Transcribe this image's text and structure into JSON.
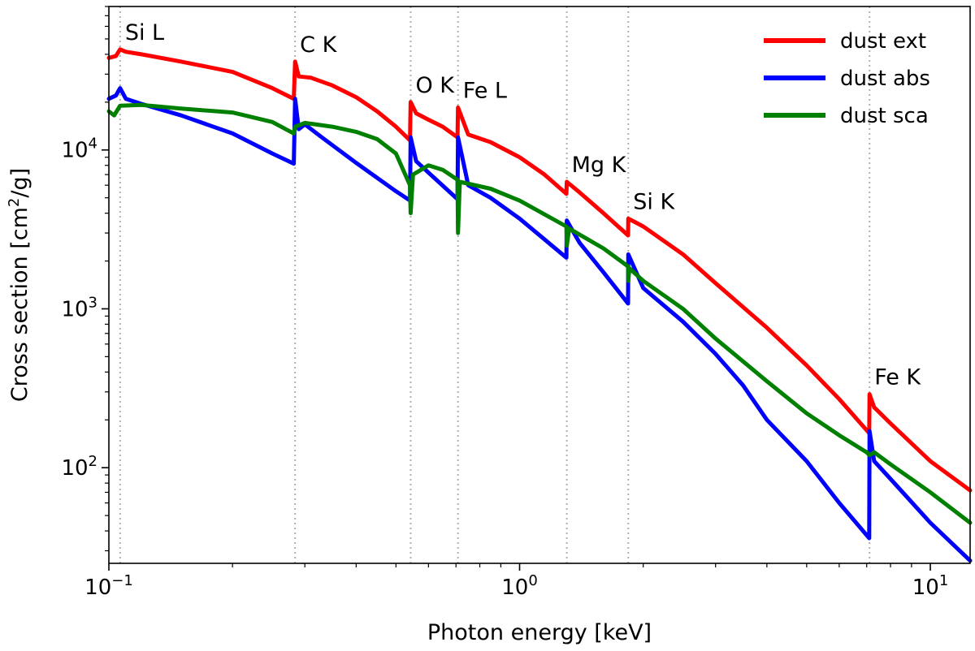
{
  "chart_data": {
    "type": "line",
    "title": "",
    "xlabel": "Photon energy [keV]",
    "ylabel": "Cross section [cm²/g]",
    "xscale": "log",
    "yscale": "log",
    "xlim": [
      0.1,
      12.5
    ],
    "ylim": [
      25,
      80000
    ],
    "grid": false,
    "legend_position": "top-right",
    "x_ticks": [
      {
        "value": 0.1,
        "base": "10",
        "exp": "−1"
      },
      {
        "value": 1,
        "base": "10",
        "exp": "0"
      },
      {
        "value": 10,
        "base": "10",
        "exp": "1"
      }
    ],
    "y_ticks": [
      {
        "value": 100,
        "base": "10",
        "exp": "2"
      },
      {
        "value": 1000,
        "base": "10",
        "exp": "3"
      },
      {
        "value": 10000,
        "base": "10",
        "exp": "4"
      }
    ],
    "edges": [
      {
        "name": "Si L",
        "energy": 0.1065
      },
      {
        "name": "C K",
        "energy": 0.284
      },
      {
        "name": "O K",
        "energy": 0.543
      },
      {
        "name": "Fe L",
        "energy": 0.708
      },
      {
        "name": "Mg K",
        "energy": 1.303
      },
      {
        "name": "Si K",
        "energy": 1.839
      },
      {
        "name": "Fe K",
        "energy": 7.112
      }
    ],
    "series": [
      {
        "name": "dust ext",
        "color": "#ff0000",
        "points": [
          [
            0.1,
            38000
          ],
          [
            0.104,
            39000
          ],
          [
            0.1065,
            43000
          ],
          [
            0.11,
            41500
          ],
          [
            0.12,
            40000
          ],
          [
            0.15,
            36000
          ],
          [
            0.2,
            31000
          ],
          [
            0.25,
            24500
          ],
          [
            0.282,
            21000
          ],
          [
            0.284,
            36000
          ],
          [
            0.29,
            29000
          ],
          [
            0.31,
            28500
          ],
          [
            0.35,
            25500
          ],
          [
            0.4,
            21500
          ],
          [
            0.45,
            17500
          ],
          [
            0.5,
            14000
          ],
          [
            0.541,
            11500
          ],
          [
            0.543,
            20000
          ],
          [
            0.56,
            17000
          ],
          [
            0.6,
            15500
          ],
          [
            0.65,
            14000
          ],
          [
            0.706,
            12000
          ],
          [
            0.708,
            18500
          ],
          [
            0.75,
            12500
          ],
          [
            0.85,
            11200
          ],
          [
            1.0,
            9000
          ],
          [
            1.15,
            7000
          ],
          [
            1.3,
            5300
          ],
          [
            1.303,
            6300
          ],
          [
            1.4,
            5400
          ],
          [
            1.6,
            4000
          ],
          [
            1.837,
            2900
          ],
          [
            1.839,
            3700
          ],
          [
            2.0,
            3300
          ],
          [
            2.5,
            2200
          ],
          [
            3.0,
            1450
          ],
          [
            4.0,
            760
          ],
          [
            5.0,
            440
          ],
          [
            6.0,
            270
          ],
          [
            7.1,
            165
          ],
          [
            7.112,
            290
          ],
          [
            7.3,
            240
          ],
          [
            8.0,
            190
          ],
          [
            10.0,
            110
          ],
          [
            12.5,
            72
          ]
        ]
      },
      {
        "name": "dust abs",
        "color": "#0000ff",
        "points": [
          [
            0.1,
            21000
          ],
          [
            0.104,
            22000
          ],
          [
            0.1065,
            24500
          ],
          [
            0.11,
            21000
          ],
          [
            0.12,
            19500
          ],
          [
            0.15,
            16500
          ],
          [
            0.2,
            12700
          ],
          [
            0.25,
            9500
          ],
          [
            0.282,
            8200
          ],
          [
            0.284,
            21000
          ],
          [
            0.29,
            13500
          ],
          [
            0.3,
            14500
          ],
          [
            0.33,
            12000
          ],
          [
            0.4,
            8300
          ],
          [
            0.5,
            5500
          ],
          [
            0.541,
            4800
          ],
          [
            0.543,
            12000
          ],
          [
            0.56,
            8500
          ],
          [
            0.6,
            7200
          ],
          [
            0.706,
            4900
          ],
          [
            0.708,
            12000
          ],
          [
            0.75,
            6000
          ],
          [
            0.85,
            5000
          ],
          [
            1.0,
            3700
          ],
          [
            1.3,
            2100
          ],
          [
            1.303,
            3600
          ],
          [
            1.4,
            2600
          ],
          [
            1.6,
            1700
          ],
          [
            1.837,
            1080
          ],
          [
            1.839,
            2200
          ],
          [
            2.0,
            1350
          ],
          [
            2.5,
            830
          ],
          [
            3.0,
            520
          ],
          [
            3.5,
            330
          ],
          [
            4.0,
            200
          ],
          [
            5.0,
            110
          ],
          [
            6.0,
            60
          ],
          [
            7.1,
            36
          ],
          [
            7.112,
            170
          ],
          [
            7.3,
            110
          ],
          [
            8.0,
            85
          ],
          [
            10.0,
            45
          ],
          [
            12.5,
            26
          ]
        ]
      },
      {
        "name": "dust sca",
        "color": "#008000",
        "points": [
          [
            0.1,
            17500
          ],
          [
            0.103,
            16500
          ],
          [
            0.1065,
            19000
          ],
          [
            0.12,
            19200
          ],
          [
            0.15,
            18200
          ],
          [
            0.2,
            17200
          ],
          [
            0.25,
            15000
          ],
          [
            0.282,
            12700
          ],
          [
            0.284,
            14000
          ],
          [
            0.3,
            14800
          ],
          [
            0.35,
            14000
          ],
          [
            0.4,
            13000
          ],
          [
            0.45,
            11700
          ],
          [
            0.5,
            9500
          ],
          [
            0.541,
            6000
          ],
          [
            0.543,
            4000
          ],
          [
            0.55,
            7000
          ],
          [
            0.6,
            8000
          ],
          [
            0.65,
            7500
          ],
          [
            0.706,
            6500
          ],
          [
            0.708,
            3000
          ],
          [
            0.715,
            6300
          ],
          [
            0.85,
            5700
          ],
          [
            1.0,
            4800
          ],
          [
            1.3,
            3300
          ],
          [
            1.303,
            2500
          ],
          [
            1.32,
            3200
          ],
          [
            1.6,
            2400
          ],
          [
            1.837,
            1850
          ],
          [
            1.839,
            1500
          ],
          [
            1.85,
            1800
          ],
          [
            2.0,
            1500
          ],
          [
            2.5,
            1000
          ],
          [
            3.0,
            650
          ],
          [
            4.0,
            350
          ],
          [
            5.0,
            220
          ],
          [
            6.0,
            160
          ],
          [
            7.0,
            125
          ],
          [
            7.112,
            120
          ],
          [
            7.3,
            125
          ],
          [
            8.0,
            105
          ],
          [
            10.0,
            70
          ],
          [
            12.5,
            45
          ]
        ]
      }
    ]
  }
}
